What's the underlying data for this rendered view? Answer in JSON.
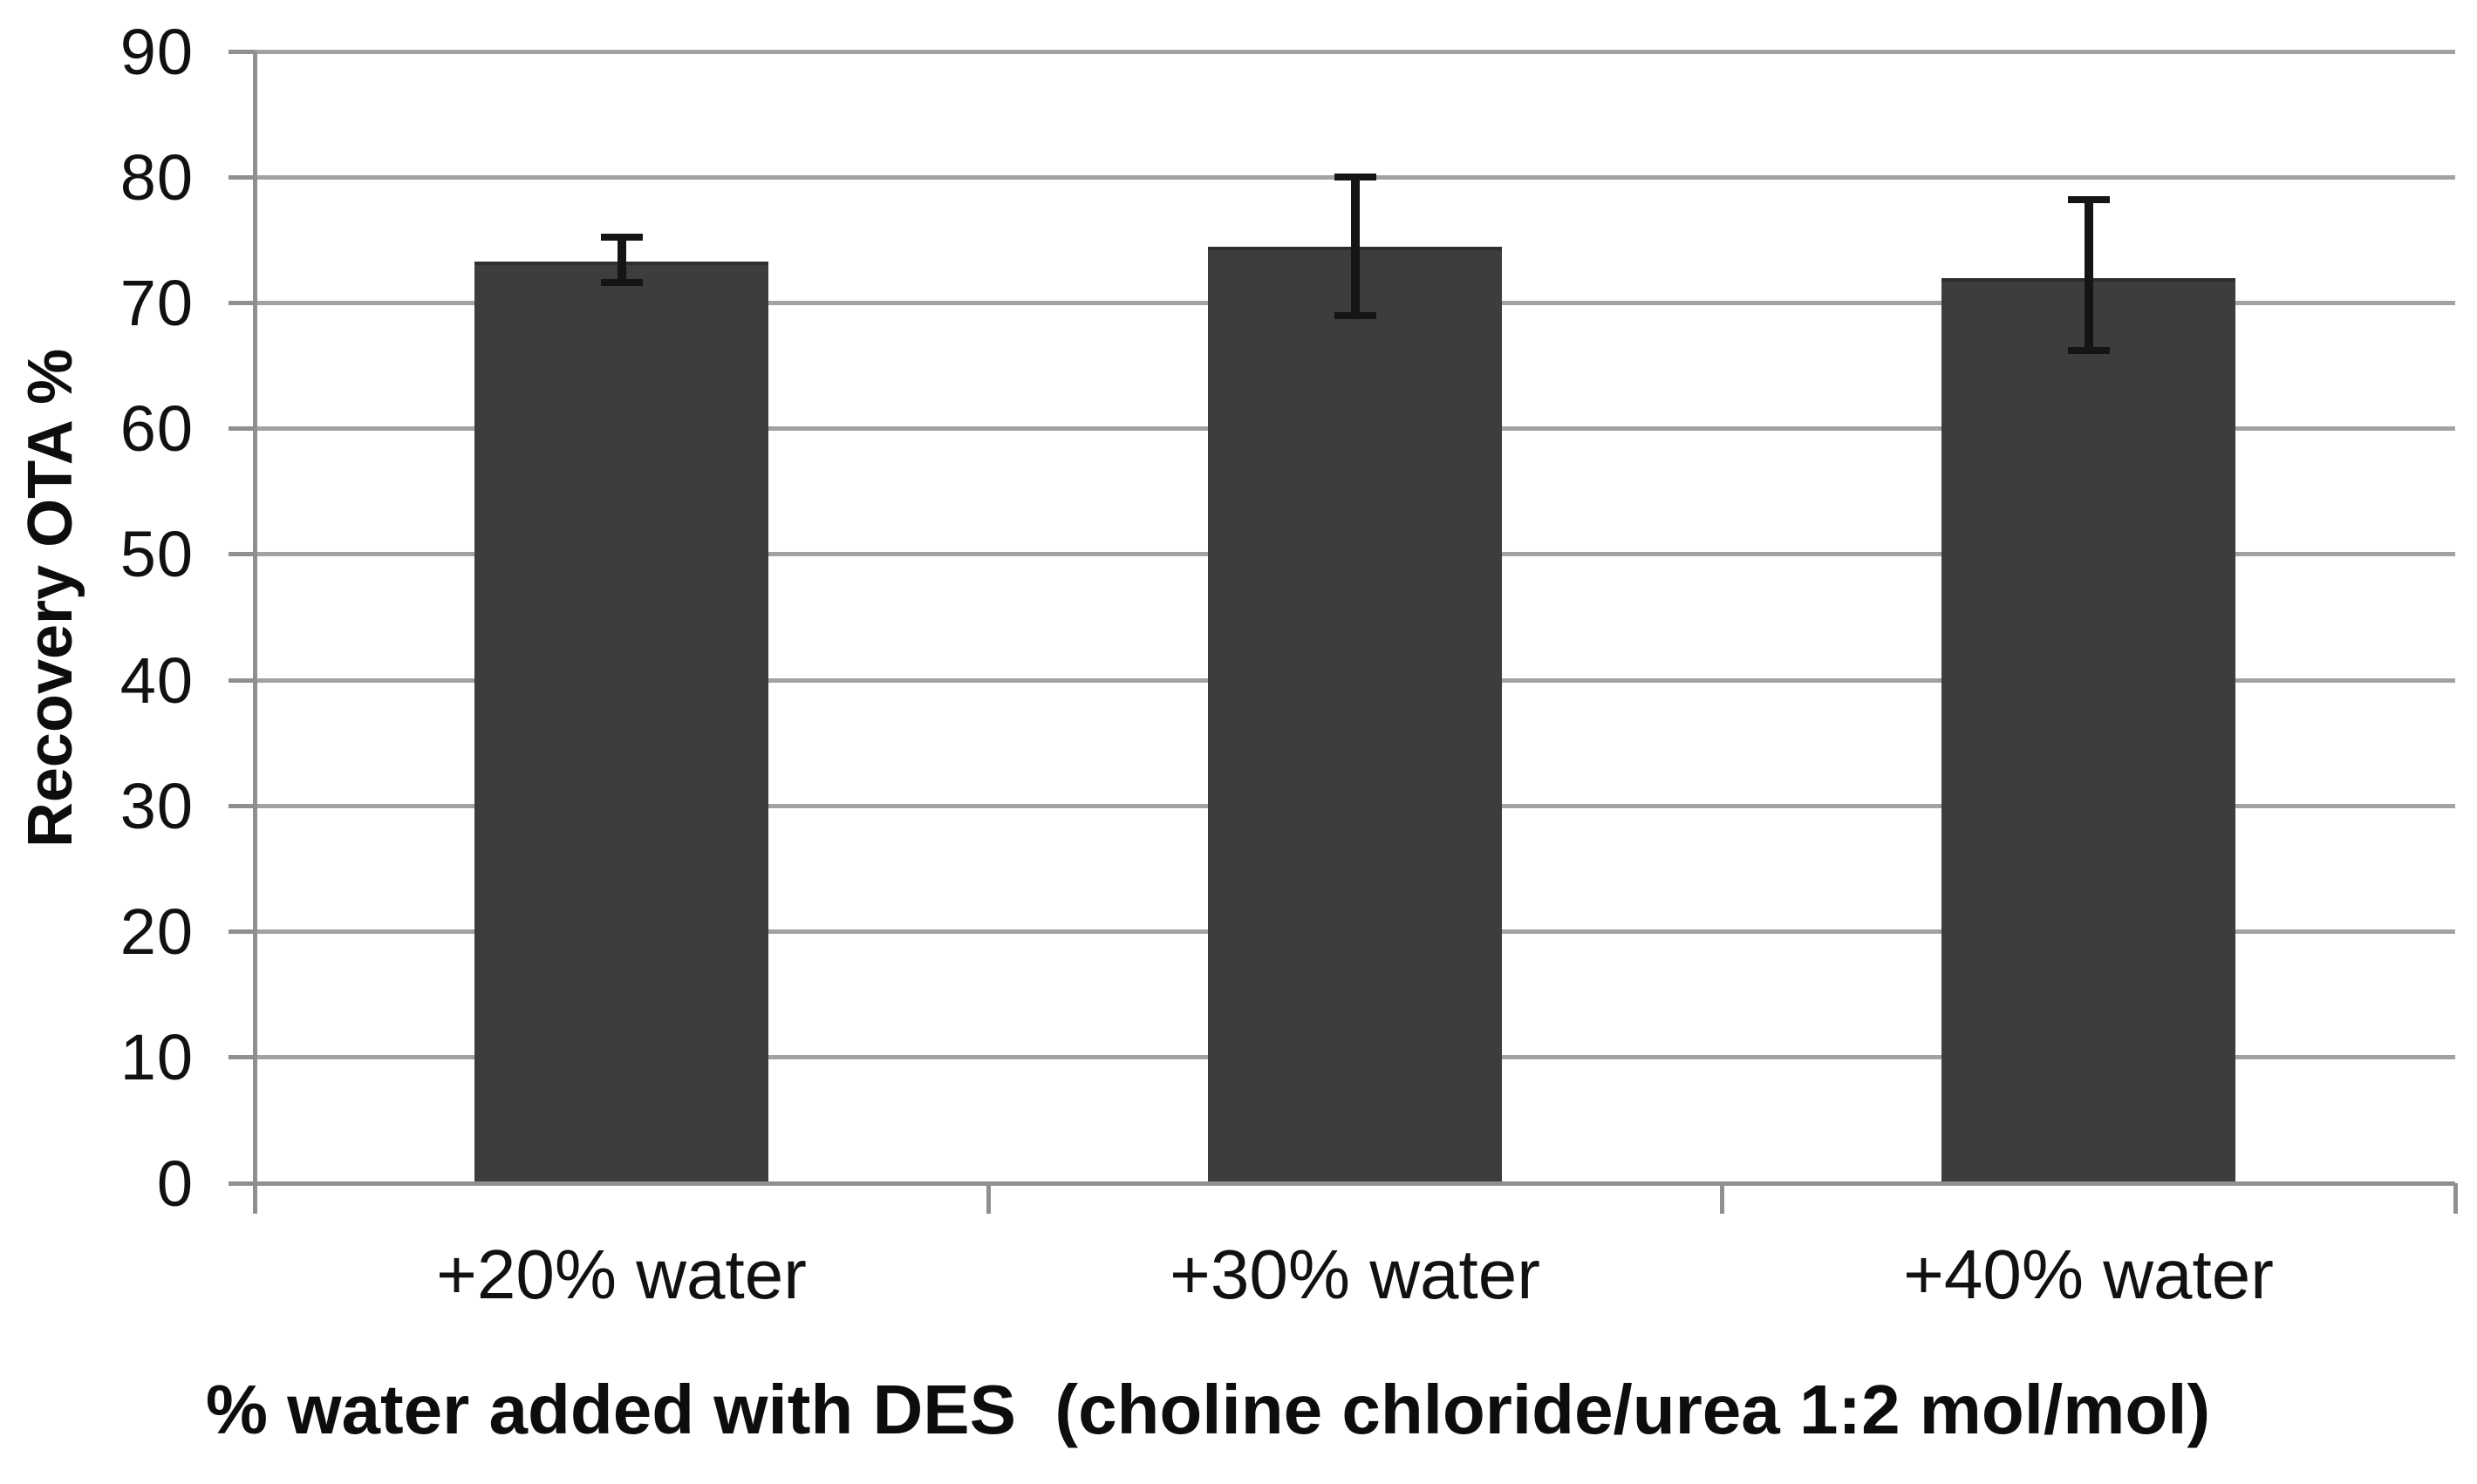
{
  "figure": {
    "background": "#ffffff"
  },
  "chart_data": {
    "type": "bar",
    "title": "",
    "xlabel": "% water added with DES  (choline chloride/urea 1:2 mol/mol)",
    "ylabel": "Recovery OTA %",
    "categories": [
      "+20% water",
      "+30% water",
      "+40% water"
    ],
    "values": [
      73.3,
      74.5,
      72.0
    ],
    "error_upper": [
      75.2,
      80.0,
      78.2
    ],
    "error_lower": [
      71.6,
      69.0,
      66.2
    ],
    "ylim": [
      0,
      90
    ],
    "yticks": [
      0,
      10,
      20,
      30,
      40,
      50,
      60,
      70,
      80,
      90
    ],
    "grid": "horizontal",
    "legend": "none",
    "colors": {
      "bar_fill": "#3d3d3d",
      "bar_top_edge": "#2e2e2e",
      "gridline": "#a2a2a2",
      "axis": "#8f8f8f",
      "error_bar": "#151515",
      "text": "#111111"
    }
  }
}
